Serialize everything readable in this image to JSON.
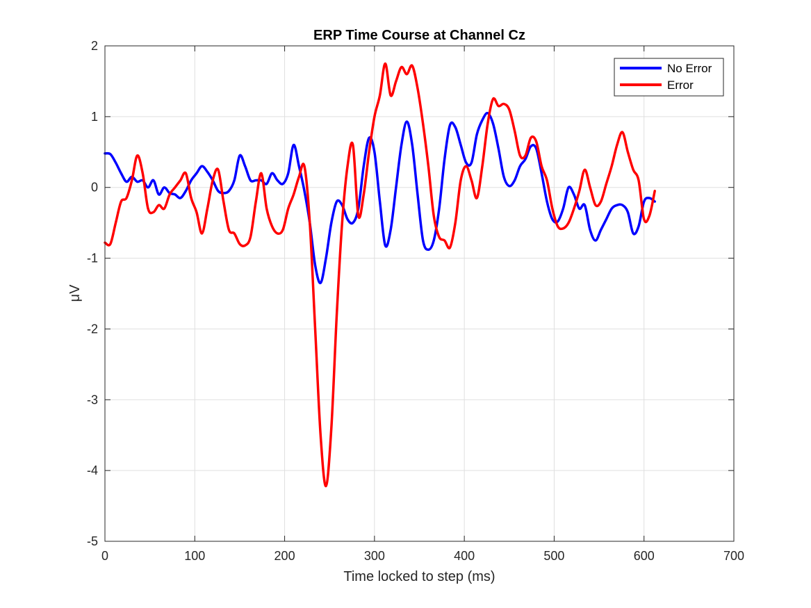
{
  "chart_data": {
    "type": "line",
    "title": "ERP Time Course at Channel Cz",
    "xlabel": "Time locked to step (ms)",
    "ylabel": "μV",
    "xlim": [
      0,
      700
    ],
    "ylim": [
      -5,
      2
    ],
    "xticks": [
      0,
      100,
      200,
      300,
      400,
      500,
      600,
      700
    ],
    "yticks": [
      -5,
      -4,
      -3,
      -2,
      -1,
      0,
      1,
      2
    ],
    "grid": true,
    "legend_position": "top-right",
    "series": [
      {
        "name": "No Error",
        "color": "#0000ff",
        "points": [
          [
            0,
            0.48
          ],
          [
            6,
            0.47
          ],
          [
            12,
            0.35
          ],
          [
            18,
            0.2
          ],
          [
            24,
            0.08
          ],
          [
            30,
            0.15
          ],
          [
            36,
            0.08
          ],
          [
            42,
            0.1
          ],
          [
            48,
            0.0
          ],
          [
            54,
            0.1
          ],
          [
            60,
            -0.1
          ],
          [
            66,
            0.0
          ],
          [
            72,
            -0.08
          ],
          [
            78,
            -0.1
          ],
          [
            84,
            -0.15
          ],
          [
            90,
            -0.05
          ],
          [
            96,
            0.1
          ],
          [
            102,
            0.2
          ],
          [
            108,
            0.3
          ],
          [
            114,
            0.22
          ],
          [
            120,
            0.1
          ],
          [
            126,
            -0.05
          ],
          [
            132,
            -0.08
          ],
          [
            138,
            -0.05
          ],
          [
            144,
            0.1
          ],
          [
            150,
            0.45
          ],
          [
            156,
            0.3
          ],
          [
            162,
            0.1
          ],
          [
            168,
            0.1
          ],
          [
            174,
            0.1
          ],
          [
            180,
            0.05
          ],
          [
            186,
            0.2
          ],
          [
            192,
            0.1
          ],
          [
            198,
            0.05
          ],
          [
            204,
            0.2
          ],
          [
            210,
            0.6
          ],
          [
            216,
            0.3
          ],
          [
            222,
            -0.05
          ],
          [
            228,
            -0.5
          ],
          [
            234,
            -1.1
          ],
          [
            240,
            -1.35
          ],
          [
            246,
            -1.0
          ],
          [
            252,
            -0.5
          ],
          [
            258,
            -0.2
          ],
          [
            264,
            -0.25
          ],
          [
            270,
            -0.45
          ],
          [
            276,
            -0.5
          ],
          [
            282,
            -0.3
          ],
          [
            288,
            0.3
          ],
          [
            294,
            0.7
          ],
          [
            300,
            0.5
          ],
          [
            306,
            -0.2
          ],
          [
            312,
            -0.82
          ],
          [
            318,
            -0.6
          ],
          [
            324,
            0.0
          ],
          [
            330,
            0.6
          ],
          [
            336,
            0.93
          ],
          [
            342,
            0.6
          ],
          [
            348,
            -0.1
          ],
          [
            354,
            -0.75
          ],
          [
            360,
            -0.88
          ],
          [
            366,
            -0.75
          ],
          [
            372,
            -0.3
          ],
          [
            378,
            0.4
          ],
          [
            384,
            0.88
          ],
          [
            390,
            0.85
          ],
          [
            396,
            0.6
          ],
          [
            402,
            0.35
          ],
          [
            408,
            0.35
          ],
          [
            414,
            0.75
          ],
          [
            420,
            0.95
          ],
          [
            426,
            1.05
          ],
          [
            432,
            0.9
          ],
          [
            438,
            0.55
          ],
          [
            444,
            0.15
          ],
          [
            450,
            0.02
          ],
          [
            456,
            0.1
          ],
          [
            462,
            0.3
          ],
          [
            468,
            0.4
          ],
          [
            474,
            0.58
          ],
          [
            480,
            0.55
          ],
          [
            486,
            0.2
          ],
          [
            492,
            -0.2
          ],
          [
            498,
            -0.45
          ],
          [
            504,
            -0.48
          ],
          [
            510,
            -0.3
          ],
          [
            516,
            0.0
          ],
          [
            522,
            -0.1
          ],
          [
            528,
            -0.3
          ],
          [
            534,
            -0.25
          ],
          [
            540,
            -0.6
          ],
          [
            546,
            -0.75
          ],
          [
            552,
            -0.6
          ],
          [
            558,
            -0.45
          ],
          [
            564,
            -0.3
          ],
          [
            570,
            -0.25
          ],
          [
            576,
            -0.25
          ],
          [
            582,
            -0.35
          ],
          [
            588,
            -0.65
          ],
          [
            594,
            -0.55
          ],
          [
            600,
            -0.2
          ],
          [
            606,
            -0.15
          ],
          [
            612,
            -0.2
          ]
        ]
      },
      {
        "name": "Error",
        "color": "#ff0000",
        "points": [
          [
            0,
            -0.78
          ],
          [
            6,
            -0.8
          ],
          [
            12,
            -0.5
          ],
          [
            18,
            -0.2
          ],
          [
            24,
            -0.15
          ],
          [
            30,
            0.1
          ],
          [
            36,
            0.45
          ],
          [
            42,
            0.2
          ],
          [
            48,
            -0.3
          ],
          [
            54,
            -0.35
          ],
          [
            60,
            -0.25
          ],
          [
            66,
            -0.3
          ],
          [
            72,
            -0.1
          ],
          [
            78,
            0.0
          ],
          [
            84,
            0.1
          ],
          [
            90,
            0.2
          ],
          [
            96,
            -0.15
          ],
          [
            102,
            -0.35
          ],
          [
            108,
            -0.65
          ],
          [
            114,
            -0.3
          ],
          [
            120,
            0.1
          ],
          [
            126,
            0.25
          ],
          [
            132,
            -0.2
          ],
          [
            138,
            -0.6
          ],
          [
            144,
            -0.65
          ],
          [
            150,
            -0.8
          ],
          [
            156,
            -0.82
          ],
          [
            162,
            -0.7
          ],
          [
            168,
            -0.2
          ],
          [
            174,
            0.2
          ],
          [
            180,
            -0.3
          ],
          [
            186,
            -0.55
          ],
          [
            192,
            -0.65
          ],
          [
            198,
            -0.6
          ],
          [
            204,
            -0.3
          ],
          [
            210,
            -0.1
          ],
          [
            216,
            0.15
          ],
          [
            222,
            0.3
          ],
          [
            228,
            -0.5
          ],
          [
            234,
            -2.0
          ],
          [
            240,
            -3.5
          ],
          [
            246,
            -4.22
          ],
          [
            252,
            -3.4
          ],
          [
            258,
            -1.8
          ],
          [
            264,
            -0.5
          ],
          [
            270,
            0.3
          ],
          [
            276,
            0.6
          ],
          [
            282,
            -0.4
          ],
          [
            288,
            -0.1
          ],
          [
            294,
            0.5
          ],
          [
            300,
            1.0
          ],
          [
            306,
            1.3
          ],
          [
            312,
            1.75
          ],
          [
            318,
            1.3
          ],
          [
            324,
            1.5
          ],
          [
            330,
            1.7
          ],
          [
            336,
            1.6
          ],
          [
            342,
            1.72
          ],
          [
            348,
            1.4
          ],
          [
            354,
            0.9
          ],
          [
            360,
            0.3
          ],
          [
            366,
            -0.4
          ],
          [
            372,
            -0.7
          ],
          [
            378,
            -0.75
          ],
          [
            384,
            -0.85
          ],
          [
            390,
            -0.5
          ],
          [
            396,
            0.1
          ],
          [
            402,
            0.3
          ],
          [
            408,
            0.1
          ],
          [
            414,
            -0.15
          ],
          [
            420,
            0.3
          ],
          [
            426,
            0.9
          ],
          [
            432,
            1.25
          ],
          [
            438,
            1.15
          ],
          [
            444,
            1.18
          ],
          [
            450,
            1.1
          ],
          [
            456,
            0.8
          ],
          [
            462,
            0.45
          ],
          [
            468,
            0.45
          ],
          [
            474,
            0.7
          ],
          [
            480,
            0.65
          ],
          [
            486,
            0.3
          ],
          [
            492,
            0.1
          ],
          [
            498,
            -0.3
          ],
          [
            504,
            -0.55
          ],
          [
            510,
            -0.58
          ],
          [
            516,
            -0.5
          ],
          [
            522,
            -0.3
          ],
          [
            528,
            -0.05
          ],
          [
            534,
            0.25
          ],
          [
            540,
            0.0
          ],
          [
            546,
            -0.25
          ],
          [
            552,
            -0.2
          ],
          [
            558,
            0.05
          ],
          [
            564,
            0.3
          ],
          [
            570,
            0.6
          ],
          [
            576,
            0.78
          ],
          [
            582,
            0.5
          ],
          [
            588,
            0.25
          ],
          [
            594,
            0.1
          ],
          [
            600,
            -0.45
          ],
          [
            606,
            -0.4
          ],
          [
            612,
            -0.05
          ]
        ]
      }
    ]
  }
}
